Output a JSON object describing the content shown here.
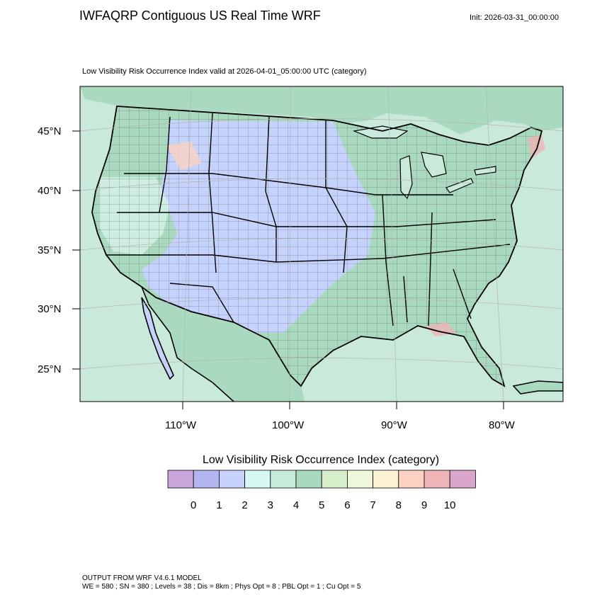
{
  "header": {
    "title": "IWFAQRP Contiguous US Real Time WRF",
    "init": "Init: 2026-03-31_00:00:00"
  },
  "plot": {
    "title": "Low Visibility Risk Occurrence Index valid at 2026-04-01_05:00:00 UTC   (category)",
    "lat_labels": [
      "45°N",
      "40°N",
      "35°N",
      "30°N",
      "25°N"
    ],
    "lon_labels": [
      "110°W",
      "100°W",
      "90°W",
      "80°W"
    ]
  },
  "legend": {
    "title": "Low Visibility Risk Occurrence Index  (category)",
    "values": [
      "0",
      "1",
      "2",
      "3",
      "4",
      "5",
      "6",
      "7",
      "8",
      "9",
      "10"
    ],
    "colors": [
      "#c9a6dc",
      "#b3b5f0",
      "#c7d3fd",
      "#d5f9f2",
      "#c7ebdb",
      "#a9d9be",
      "#d6efc9",
      "#eef8d8",
      "#fdf1d3",
      "#fbd2c2",
      "#efb4b5",
      "#dba6cb"
    ]
  },
  "map_colors": {
    "ocean": "#c9e9db",
    "land_green": "#a9d9be",
    "land_blue": "#c5d2fb",
    "land_light": "#d5f0e8"
  },
  "footer": {
    "line1": "OUTPUT FROM WRF V4.6.1 MODEL",
    "line2": "WE = 580 ; SN = 380 ; Levels = 38 ; Dis = 8km ; Phys Opt = 8 ; PBL Opt = 1 ; Cu Opt = 5"
  }
}
